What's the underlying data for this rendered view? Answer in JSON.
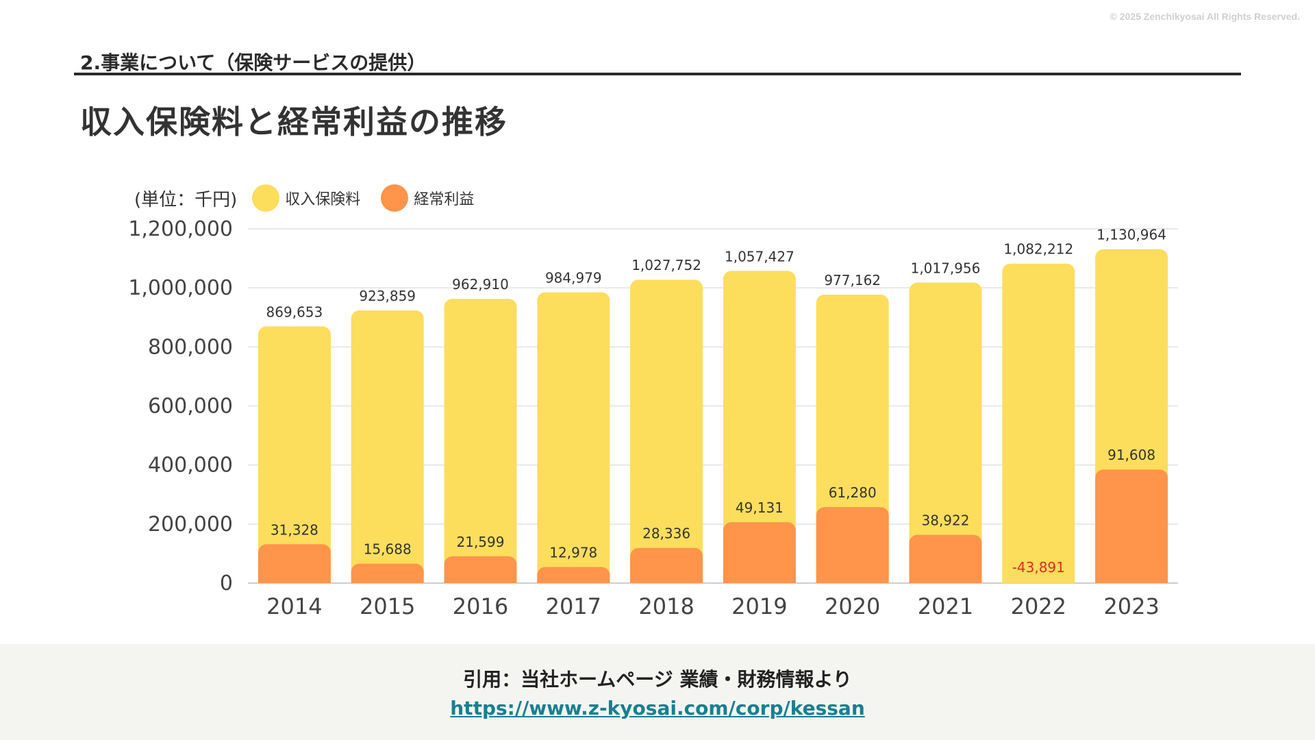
{
  "header": {
    "copyright": "© 2025 Zenchikyosai All Rights Reserved.",
    "section_title": "2.事業について（保険サービスの提供）",
    "page_title": "収入保険料と経常利益の推移"
  },
  "footer": {
    "citation": "引用：当社ホームページ 業績・財務情報より",
    "url": "https://www.z-kyosai.com/corp/kessan"
  },
  "colors": {
    "premium": "#fddd5c",
    "profit": "#ff944a",
    "negative_label": "#e02a2a"
  },
  "chart_data": {
    "type": "bar",
    "unit_label": "(単位：千円)",
    "categories": [
      "2014",
      "2015",
      "2016",
      "2017",
      "2018",
      "2019",
      "2020",
      "2021",
      "2022",
      "2023"
    ],
    "series": [
      {
        "name": "収入保険料",
        "values": [
          869653,
          923859,
          962910,
          984979,
          1027752,
          1057427,
          977162,
          1017956,
          1082212,
          1130964
        ],
        "labels": [
          "869,653",
          "923,859",
          "962,910",
          "984,979",
          "1,027,752",
          "1,057,427",
          "977,162",
          "1,017,956",
          "1,082,212",
          "1,130,964"
        ]
      },
      {
        "name": "経常利益",
        "values": [
          31328,
          15688,
          21599,
          12978,
          28336,
          49131,
          61280,
          38922,
          -43891,
          91608
        ],
        "labels": [
          "31,328",
          "15,688",
          "21,599",
          "12,978",
          "28,336",
          "49,131",
          "61,280",
          "38,922",
          "-43,891",
          "91,608"
        ]
      }
    ],
    "y_ticks": [
      "0",
      "200,000",
      "400,000",
      "600,000",
      "800,000",
      "1,000,000",
      "1,200,000"
    ],
    "ylim": [
      0,
      1200000
    ],
    "legend_position": "top-left",
    "grid": true
  }
}
